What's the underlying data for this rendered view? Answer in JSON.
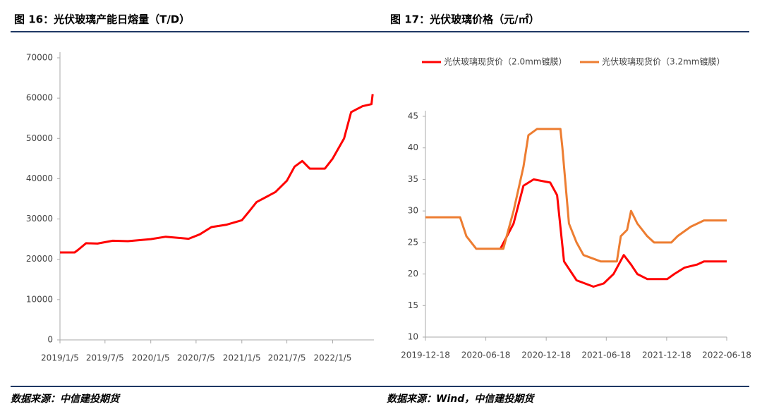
{
  "chart_data": [
    {
      "type": "line",
      "title": "图 16：光伏玻璃产能日熔量（T/D）",
      "source": "数据来源：中信建投期货",
      "color": "#ff0000",
      "x": [
        "2019/1/5",
        "2019/3/5",
        "2019/3/20",
        "2019/4/20",
        "2019/6/5",
        "2019/8/5",
        "2019/10/5",
        "2020/1/5",
        "2020/3/5",
        "2020/6/5",
        "2020/7/20",
        "2020/9/5",
        "2020/11/5",
        "2021/1/5",
        "2021/2/5",
        "2021/3/5",
        "2021/4/20",
        "2021/5/20",
        "2021/7/5",
        "2021/8/5",
        "2021/9/5",
        "2021/10/5",
        "2021/12/5",
        "2022/1/5",
        "2022/2/20",
        "2022/3/20",
        "2022/5/5",
        "2022/6/10",
        "2022/6/15"
      ],
      "values": [
        21700,
        21700,
        22400,
        24000,
        23900,
        24600,
        24500,
        25000,
        25600,
        25100,
        26200,
        28000,
        28600,
        29700,
        32000,
        34200,
        35700,
        36700,
        39500,
        43000,
        44400,
        42500,
        42500,
        45000,
        50000,
        56500,
        58000,
        58500,
        61000
      ],
      "xlim": [
        "2019/1/5",
        "2022/6/20"
      ],
      "xticks": [
        "2019/1/5",
        "2019/7/5",
        "2020/1/5",
        "2020/7/5",
        "2021/1/5",
        "2021/7/5",
        "2022/1/5"
      ],
      "ylim": [
        0,
        70000
      ],
      "yticks": [
        0,
        10000,
        20000,
        30000,
        40000,
        50000,
        60000,
        70000
      ],
      "grid": false
    },
    {
      "type": "line",
      "title": "图 17：光伏玻璃价格（元/㎡）",
      "source": "数据来源：Wind，中信建投期货",
      "legend": "top",
      "series": [
        {
          "name": "光伏玻璃现货价（2.0mm镀膜）",
          "color": "#ff0000",
          "x": [
            "2020-08-01",
            "2020-09-10",
            "2020-10-10",
            "2020-11-10",
            "2020-12-30",
            "2021-01-20",
            "2021-02-10",
            "2021-03-20",
            "2021-05-10",
            "2021-06-10",
            "2021-07-10",
            "2021-08-10",
            "2021-09-01",
            "2021-09-20",
            "2021-10-20",
            "2021-12-20",
            "2022-01-10",
            "2022-02-10",
            "2022-03-20",
            "2022-04-10",
            "2022-06-18"
          ],
          "values": [
            24,
            28,
            34,
            35,
            34.5,
            32.5,
            22,
            19,
            18,
            18.5,
            20,
            23,
            21.5,
            20,
            19.2,
            19.2,
            20,
            21,
            21.5,
            22,
            22
          ]
        },
        {
          "name": "光伏玻璃现货价（3.2mm镀膜）",
          "color": "#ed7d31",
          "x": [
            "2019-12-18",
            "2020-04-01",
            "2020-04-20",
            "2020-05-20",
            "2020-08-10",
            "2020-08-20",
            "2020-09-10",
            "2020-10-10",
            "2020-10-25",
            "2020-11-20",
            "2021-01-30",
            "2021-02-05",
            "2021-02-25",
            "2021-03-20",
            "2021-04-10",
            "2021-06-01",
            "2021-07-20",
            "2021-08-01",
            "2021-08-20",
            "2021-09-01",
            "2021-09-20",
            "2021-10-20",
            "2021-11-10",
            "2022-01-01",
            "2022-01-20",
            "2022-03-01",
            "2022-04-10",
            "2022-06-18"
          ],
          "values": [
            29,
            29,
            26,
            24,
            24,
            26,
            30,
            37,
            42,
            43,
            43,
            40,
            28,
            25,
            23,
            22,
            22,
            26,
            27,
            30,
            28,
            26,
            25,
            25,
            26,
            27.5,
            28.5,
            28.5
          ]
        }
      ],
      "xlim": [
        "2019-12-18",
        "2022-06-18"
      ],
      "xticks": [
        "2019-12-18",
        "2020-06-18",
        "2020-12-18",
        "2021-06-18",
        "2021-12-18",
        "2022-06-18"
      ],
      "ylim": [
        10,
        45
      ],
      "yticks": [
        10,
        15,
        20,
        25,
        30,
        35,
        40,
        45
      ],
      "grid": false
    }
  ]
}
